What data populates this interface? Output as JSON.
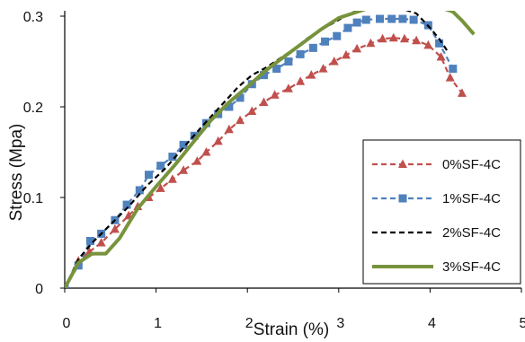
{
  "chart_data": {
    "type": "line",
    "title": "",
    "xlabel": "Strain (%)",
    "ylabel": "Stress (Mpa)",
    "xlim": [
      0,
      5
    ],
    "ylim": [
      0,
      0.3
    ],
    "x_ticks": [
      "0",
      "1",
      "2",
      "3",
      "4",
      "5"
    ],
    "y_ticks": [
      "0",
      "0.1",
      "0.2",
      "0.3"
    ],
    "x_tick_values": [
      0,
      1,
      2,
      3,
      4,
      5
    ],
    "y_tick_values": [
      0,
      0.1,
      0.2,
      0.3
    ],
    "grid": false,
    "legend_position": "lower-right",
    "series": [
      {
        "name": "0%SF-4C",
        "color": "#c0504d",
        "line_style": "dashed",
        "marker": "triangle",
        "x": [
          0,
          0.15,
          0.27,
          0.4,
          0.55,
          0.7,
          0.8,
          0.92,
          1.05,
          1.18,
          1.3,
          1.45,
          1.55,
          1.68,
          1.8,
          1.92,
          2.05,
          2.18,
          2.3,
          2.45,
          2.58,
          2.7,
          2.83,
          2.95,
          3.08,
          3.2,
          3.35,
          3.48,
          3.6,
          3.72,
          3.85,
          3.98,
          4.12,
          4.22,
          4.35
        ],
        "y": [
          0,
          0.03,
          0.04,
          0.05,
          0.065,
          0.08,
          0.09,
          0.1,
          0.11,
          0.12,
          0.13,
          0.14,
          0.15,
          0.162,
          0.175,
          0.185,
          0.195,
          0.205,
          0.213,
          0.22,
          0.228,
          0.235,
          0.242,
          0.25,
          0.257,
          0.264,
          0.27,
          0.275,
          0.276,
          0.275,
          0.273,
          0.268,
          0.255,
          0.232,
          0.215
        ]
      },
      {
        "name": "1%SF-4C",
        "color": "#4f81bd",
        "line_style": "dashed",
        "marker": "square",
        "x": [
          0,
          0.15,
          0.28,
          0.4,
          0.55,
          0.68,
          0.82,
          0.92,
          1.05,
          1.18,
          1.3,
          1.42,
          1.55,
          1.68,
          1.8,
          1.92,
          2.05,
          2.18,
          2.32,
          2.45,
          2.58,
          2.72,
          2.85,
          2.98,
          3.1,
          3.2,
          3.3,
          3.45,
          3.58,
          3.7,
          3.82,
          3.98,
          4.1,
          4.25
        ],
        "y": [
          0,
          0.025,
          0.052,
          0.06,
          0.075,
          0.092,
          0.108,
          0.125,
          0.135,
          0.145,
          0.158,
          0.168,
          0.182,
          0.192,
          0.2,
          0.21,
          0.225,
          0.235,
          0.242,
          0.25,
          0.258,
          0.265,
          0.272,
          0.278,
          0.287,
          0.293,
          0.296,
          0.297,
          0.297,
          0.297,
          0.296,
          0.29,
          0.27,
          0.242
        ]
      },
      {
        "name": "2%SF-4C",
        "color": "#000000",
        "line_style": "dashed",
        "marker": "none",
        "x": [
          0,
          0.15,
          0.3,
          0.5,
          0.7,
          0.9,
          1.1,
          1.3,
          1.5,
          1.7,
          1.9,
          2.05,
          2.2,
          2.35,
          2.5,
          2.65,
          2.8,
          2.95,
          3.1,
          3.25,
          3.4,
          3.55,
          3.7,
          3.85,
          4.0,
          4.1,
          4.2
        ],
        "y": [
          0,
          0.032,
          0.05,
          0.07,
          0.09,
          0.113,
          0.132,
          0.155,
          0.178,
          0.2,
          0.222,
          0.235,
          0.243,
          0.253,
          0.263,
          0.275,
          0.285,
          0.293,
          0.302,
          0.308,
          0.31,
          0.31,
          0.308,
          0.303,
          0.287,
          0.275,
          0.26
        ]
      },
      {
        "name": "3%SF-4C",
        "color": "#77933c",
        "line_style": "solid",
        "marker": "none",
        "x": [
          0,
          0.15,
          0.3,
          0.45,
          0.6,
          0.8,
          1.0,
          1.2,
          1.4,
          1.6,
          1.8,
          2.0,
          2.2,
          2.4,
          2.6,
          2.8,
          3.0,
          3.15,
          3.3,
          3.5,
          3.7,
          3.9,
          4.1,
          4.25,
          4.35,
          4.48
        ],
        "y": [
          0,
          0.028,
          0.038,
          0.038,
          0.055,
          0.088,
          0.112,
          0.135,
          0.16,
          0.185,
          0.205,
          0.222,
          0.24,
          0.255,
          0.27,
          0.285,
          0.298,
          0.303,
          0.308,
          0.31,
          0.31,
          0.31,
          0.31,
          0.305,
          0.295,
          0.28
        ]
      }
    ]
  }
}
